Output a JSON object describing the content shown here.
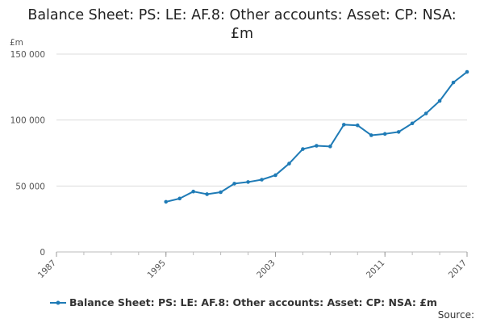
{
  "chart_data": {
    "type": "line",
    "title": "Balance Sheet: PS: LE: AF.8: Other accounts: Asset: CP: NSA: £m",
    "unit_label": "£m",
    "xlabel": "",
    "ylabel": "",
    "xlim": [
      1987,
      2017
    ],
    "ylim": [
      0,
      150000
    ],
    "y_ticks": [
      0,
      50000,
      100000,
      150000
    ],
    "y_tick_labels": [
      "0",
      "50 000",
      "100 000",
      "150 000"
    ],
    "x_ticks": [
      1987,
      1995,
      2003,
      2011,
      2017
    ],
    "x_tick_labels": [
      "1987",
      "1995",
      "2003",
      "2011",
      "2017"
    ],
    "grid": "horizontal",
    "legend_position": "bottom",
    "series": [
      {
        "name": "Balance Sheet: PS: LE: AF.8: Other accounts: Asset: CP: NSA: £m",
        "color": "#1f7bb6",
        "x": [
          1995,
          1996,
          1997,
          1998,
          1999,
          2000,
          2001,
          2002,
          2003,
          2004,
          2005,
          2006,
          2007,
          2008,
          2009,
          2010,
          2011,
          2012,
          2013,
          2014,
          2015,
          2016,
          2017
        ],
        "y": [
          38000,
          40500,
          45800,
          43800,
          45300,
          51800,
          53000,
          54800,
          58200,
          67000,
          78000,
          80500,
          80000,
          96500,
          96000,
          88500,
          89500,
          91000,
          97500,
          105000,
          114500,
          128500,
          136500
        ]
      }
    ]
  },
  "source_label": "Source:"
}
